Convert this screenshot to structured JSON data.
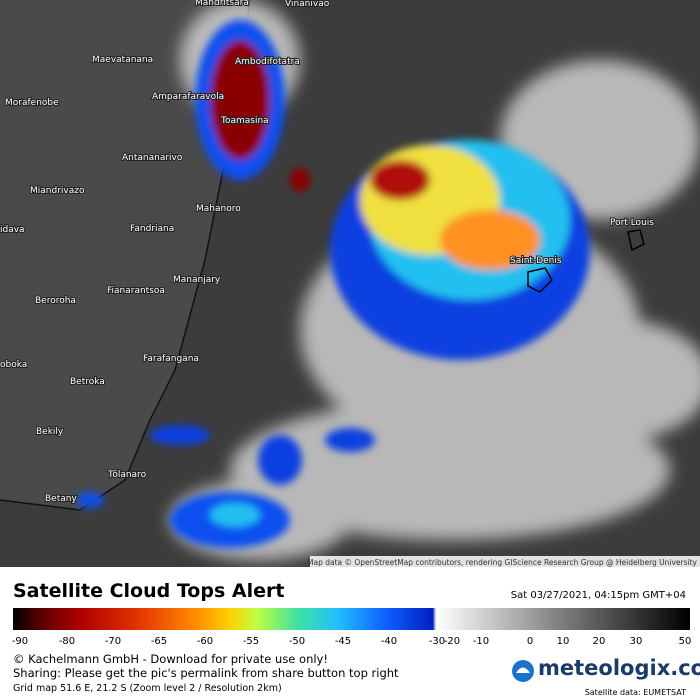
{
  "places": [
    "Mandritsara",
    "Vinanivao",
    "Maevatanana",
    "Ambodifotatra",
    "Amparafaravola",
    "Morafenobe",
    "Toamasina",
    "Antananarivo",
    "Miandrivazo",
    "Mahanoro",
    "idava",
    "Fandriana",
    "Port Louis",
    "Saint-Denis",
    "Mananjary",
    "Fianarantsoa",
    "Beroroha",
    "Farafangana",
    "oboka",
    "Betroka",
    "Bekily",
    "Tôlanaro",
    "Betany"
  ],
  "attribution": "Map data © OpenStreetMap contributors, rendering GIScience Research Group @ Heidelberg University",
  "title": "Satellite Cloud Tops Alert",
  "timestamp": "Sat 03/27/2021, 04:15pm GMT+04",
  "scale_labels": [
    "-90",
    "-80",
    "-70",
    "-65",
    "-60",
    "-55",
    "-50",
    "-45",
    "-40",
    "-30",
    "-20",
    "-10",
    "0",
    "10",
    "20",
    "30",
    "50"
  ],
  "footer": [
    "© Kachelmann GmbH - Download for private use only!",
    "Sharing: Please get the pic's permalink from share button top right",
    "Grid map 51.6 E, 21.2 S (Zoom level 2 / Resolution 2km)"
  ],
  "logo": "meteologix.com",
  "source": "Satellite data: EUMETSAT"
}
